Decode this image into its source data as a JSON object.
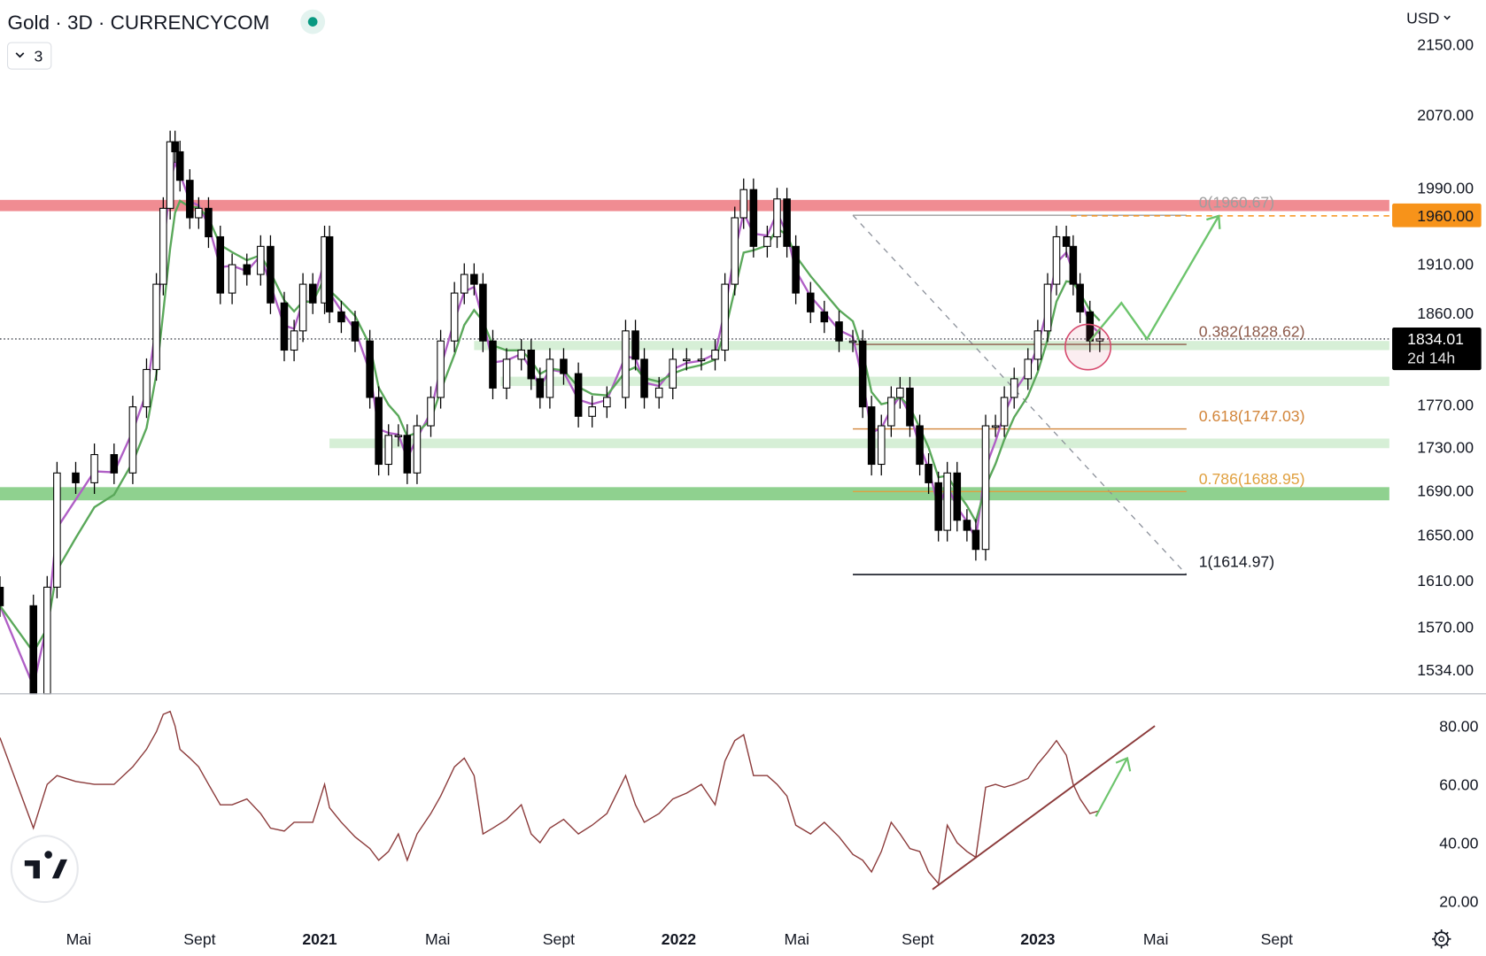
{
  "header": {
    "title": "Gold · 3D · CURRENCYCOM",
    "status_dot_color": "#089981",
    "indicator_toggle": "3",
    "currency": "USD"
  },
  "price_axis": {
    "ticks": [
      "2150.00",
      "2070.00",
      "1990.00",
      "1910.00",
      "1860.00",
      "1770.00",
      "1730.00",
      "1690.00",
      "1650.00",
      "1610.00",
      "1570.00",
      "1534.00"
    ],
    "tick_values": [
      2150,
      2070,
      1990,
      1910,
      1860,
      1770,
      1730,
      1690,
      1650,
      1610,
      1570,
      1534
    ],
    "scale": "log",
    "alert_label": "1960.00",
    "alert_value": 1960,
    "alert_color": "#f7931a",
    "last_price": "1834.01",
    "last_price_value": 1834.01,
    "countdown": "2d 14h"
  },
  "rsi_axis": {
    "ticks": [
      "80.00",
      "60.00",
      "40.00",
      "20.00"
    ],
    "tick_values": [
      80,
      60,
      40,
      20
    ]
  },
  "time_axis": {
    "labels": [
      {
        "text": "Mai",
        "date": "2020-05-01",
        "bold": false
      },
      {
        "text": "Sept",
        "date": "2020-09-01",
        "bold": false
      },
      {
        "text": "2021",
        "date": "2021-01-01",
        "bold": true
      },
      {
        "text": "Mai",
        "date": "2021-05-01",
        "bold": false
      },
      {
        "text": "Sept",
        "date": "2021-09-01",
        "bold": false
      },
      {
        "text": "2022",
        "date": "2022-01-01",
        "bold": true
      },
      {
        "text": "Mai",
        "date": "2022-05-01",
        "bold": false
      },
      {
        "text": "Sept",
        "date": "2022-09-01",
        "bold": false
      },
      {
        "text": "2023",
        "date": "2023-01-01",
        "bold": true
      },
      {
        "text": "Mai",
        "date": "2023-05-01",
        "bold": false
      },
      {
        "text": "Sept",
        "date": "2023-09-01",
        "bold": false
      }
    ]
  },
  "chart_data": {
    "type": "candlestick",
    "title": "Gold · 3D · CURRENCYCOM",
    "ylabel": "USD",
    "yscale": "log",
    "ylim": [
      1510,
      2170
    ],
    "rsi_ylim": [
      15,
      90
    ],
    "dates": [
      "2020-02-11",
      "2020-03-16",
      "2020-03-30",
      "2020-04-09",
      "2020-04-28",
      "2020-05-17",
      "2020-06-06",
      "2020-06-25",
      "2020-07-09",
      "2020-07-19",
      "2020-07-26",
      "2020-08-02",
      "2020-08-07",
      "2020-08-12",
      "2020-08-22",
      "2020-08-31",
      "2020-09-10",
      "2020-09-22",
      "2020-10-04",
      "2020-10-19",
      "2020-11-02",
      "2020-11-12",
      "2020-11-26",
      "2020-12-06",
      "2020-12-15",
      "2020-12-25",
      "2021-01-06",
      "2021-01-11",
      "2021-01-23",
      "2021-02-06",
      "2021-02-21",
      "2021-03-02",
      "2021-03-12",
      "2021-03-22",
      "2021-03-31",
      "2021-04-10",
      "2021-04-24",
      "2021-05-04",
      "2021-05-18",
      "2021-05-28",
      "2021-06-07",
      "2021-06-16",
      "2021-06-26",
      "2021-07-10",
      "2021-07-25",
      "2021-08-04",
      "2021-08-13",
      "2021-08-23",
      "2021-09-06",
      "2021-09-21",
      "2021-10-05",
      "2021-10-20",
      "2021-11-08",
      "2021-11-18",
      "2021-11-27",
      "2021-12-12",
      "2021-12-26",
      "2022-01-09",
      "2022-01-24",
      "2022-02-07",
      "2022-02-17",
      "2022-02-27",
      "2022-03-08",
      "2022-03-18",
      "2022-04-01",
      "2022-04-11",
      "2022-04-21",
      "2022-04-30",
      "2022-05-15",
      "2022-05-29",
      "2022-06-13",
      "2022-06-27",
      "2022-07-07",
      "2022-07-16",
      "2022-07-26",
      "2022-08-05",
      "2022-08-14",
      "2022-08-24",
      "2022-09-03",
      "2022-09-12",
      "2022-09-22",
      "2022-10-01",
      "2022-10-11",
      "2022-10-21",
      "2022-10-30",
      "2022-11-09",
      "2022-11-19",
      "2022-11-28",
      "2022-12-08",
      "2022-12-22",
      "2023-01-01",
      "2023-01-11",
      "2023-01-20",
      "2023-01-30",
      "2023-02-06",
      "2023-02-13",
      "2023-02-23",
      "2023-03-05"
    ],
    "close": [
      1588,
      1480,
      1604,
      1706,
      1697,
      1723,
      1706,
      1768,
      1804,
      1889,
      1968,
      2040,
      2029,
      1998,
      1958,
      1968,
      1938,
      1880,
      1909,
      1899,
      1928,
      1870,
      1823,
      1842,
      1889,
      1870,
      1938,
      1861,
      1851,
      1832,
      1777,
      1714,
      1741,
      1741,
      1706,
      1750,
      1777,
      1832,
      1880,
      1899,
      1889,
      1832,
      1786,
      1814,
      1823,
      1795,
      1777,
      1814,
      1800,
      1759,
      1768,
      1777,
      1842,
      1814,
      1777,
      1786,
      1814,
      1814,
      1814,
      1823,
      1889,
      1958,
      1988,
      1928,
      1938,
      1978,
      1928,
      1880,
      1861,
      1851,
      1832,
      1832,
      1768,
      1714,
      1750,
      1777,
      1786,
      1750,
      1714,
      1697,
      1654,
      1706,
      1663,
      1654,
      1637,
      1750,
      1750,
      1777,
      1795,
      1814,
      1842,
      1889,
      1938,
      1928,
      1889,
      1861,
      1832,
      1834
    ],
    "rsi": [
      76,
      45,
      60,
      63,
      61,
      60,
      60,
      66,
      72,
      78,
      84,
      85,
      80,
      72,
      69,
      66,
      60,
      53,
      53,
      55,
      50,
      45,
      44,
      47,
      47,
      47,
      60,
      52,
      47,
      42,
      38,
      34,
      37,
      43,
      34,
      43,
      50,
      56,
      66,
      69,
      63,
      43,
      45,
      48,
      53,
      43,
      40,
      45,
      48,
      43,
      46,
      50,
      63,
      53,
      47,
      50,
      55,
      57,
      60,
      53,
      68,
      75,
      77,
      63,
      63,
      60,
      56,
      46,
      43,
      47,
      42,
      36,
      34,
      30,
      37,
      47,
      43,
      38,
      37,
      30,
      26,
      46,
      40,
      37,
      35,
      59,
      60,
      59,
      60,
      62,
      67,
      71,
      75,
      70,
      60,
      55,
      50,
      51
    ],
    "zones": [
      {
        "low": 1965,
        "high": 1977,
        "color": "#f08c92",
        "from": "2020-02-11"
      },
      {
        "low": 1823,
        "high": 1832,
        "color": "#d6efd6",
        "from": "2021-06-07"
      },
      {
        "low": 1788,
        "high": 1797,
        "color": "#d6efd6",
        "from": "2021-07-04"
      },
      {
        "low": 1729,
        "high": 1738,
        "color": "#d6efd6",
        "from": "2021-01-11"
      },
      {
        "low": 1681,
        "high": 1693,
        "color": "#8fd18f",
        "from": "2020-02-11"
      }
    ],
    "fibonacci": {
      "from": "2022-06-27",
      "to": "2023-06-07",
      "levels": [
        {
          "label": "0(1960.67)",
          "value": 1960.67,
          "color": "#9e9e9e"
        },
        {
          "label": "0.382(1828.62)",
          "value": 1828.62,
          "color": "#8d5a4a"
        },
        {
          "label": "0.618(1747.03)",
          "value": 1747.03,
          "color": "#d2853a"
        },
        {
          "label": "0.786(1688.95)",
          "value": 1688.95,
          "color": "#e0a040"
        },
        {
          "label": "1(1614.97)",
          "value": 1614.97,
          "color": "#131722"
        }
      ]
    },
    "ma_colors": {
      "fast": "#b05fc6",
      "slow": "#5aa85a"
    },
    "projection_path": [
      {
        "date": "2023-02-23",
        "price": 1832
      },
      {
        "date": "2023-03-27",
        "price": 1870
      },
      {
        "date": "2023-04-22",
        "price": 1834
      },
      {
        "date": "2023-07-04",
        "price": 1960
      }
    ],
    "rsi_trendline": [
      {
        "date": "2022-09-16",
        "rsi": 24
      },
      {
        "date": "2023-04-30",
        "rsi": 80
      }
    ],
    "rsi_projection": [
      {
        "date": "2023-03-01",
        "rsi": 49
      },
      {
        "date": "2023-04-02",
        "rsi": 69
      }
    ],
    "rsi_line_color": "#8b3a3a"
  }
}
